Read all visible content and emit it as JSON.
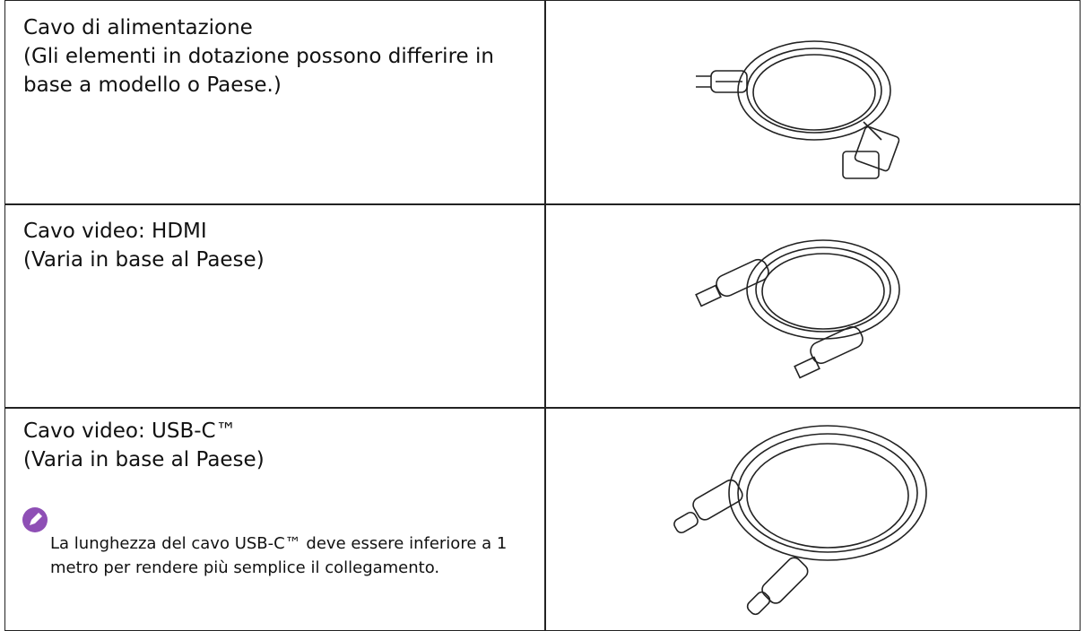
{
  "rows": [
    {
      "title": "Cavo di alimentazione",
      "subtitle": "(Gli elementi in dotazione possono differire in base a modello o Paese.)"
    },
    {
      "title": "Cavo video: HDMI",
      "subtitle": "(Varia in base al Paese)"
    },
    {
      "title": "Cavo video: USB-C™",
      "subtitle": "(Varia in base al Paese)",
      "note": "La lunghezza del cavo USB-C™ deve essere inferiore a 1 metro per rendere più semplice il collegamento."
    }
  ]
}
